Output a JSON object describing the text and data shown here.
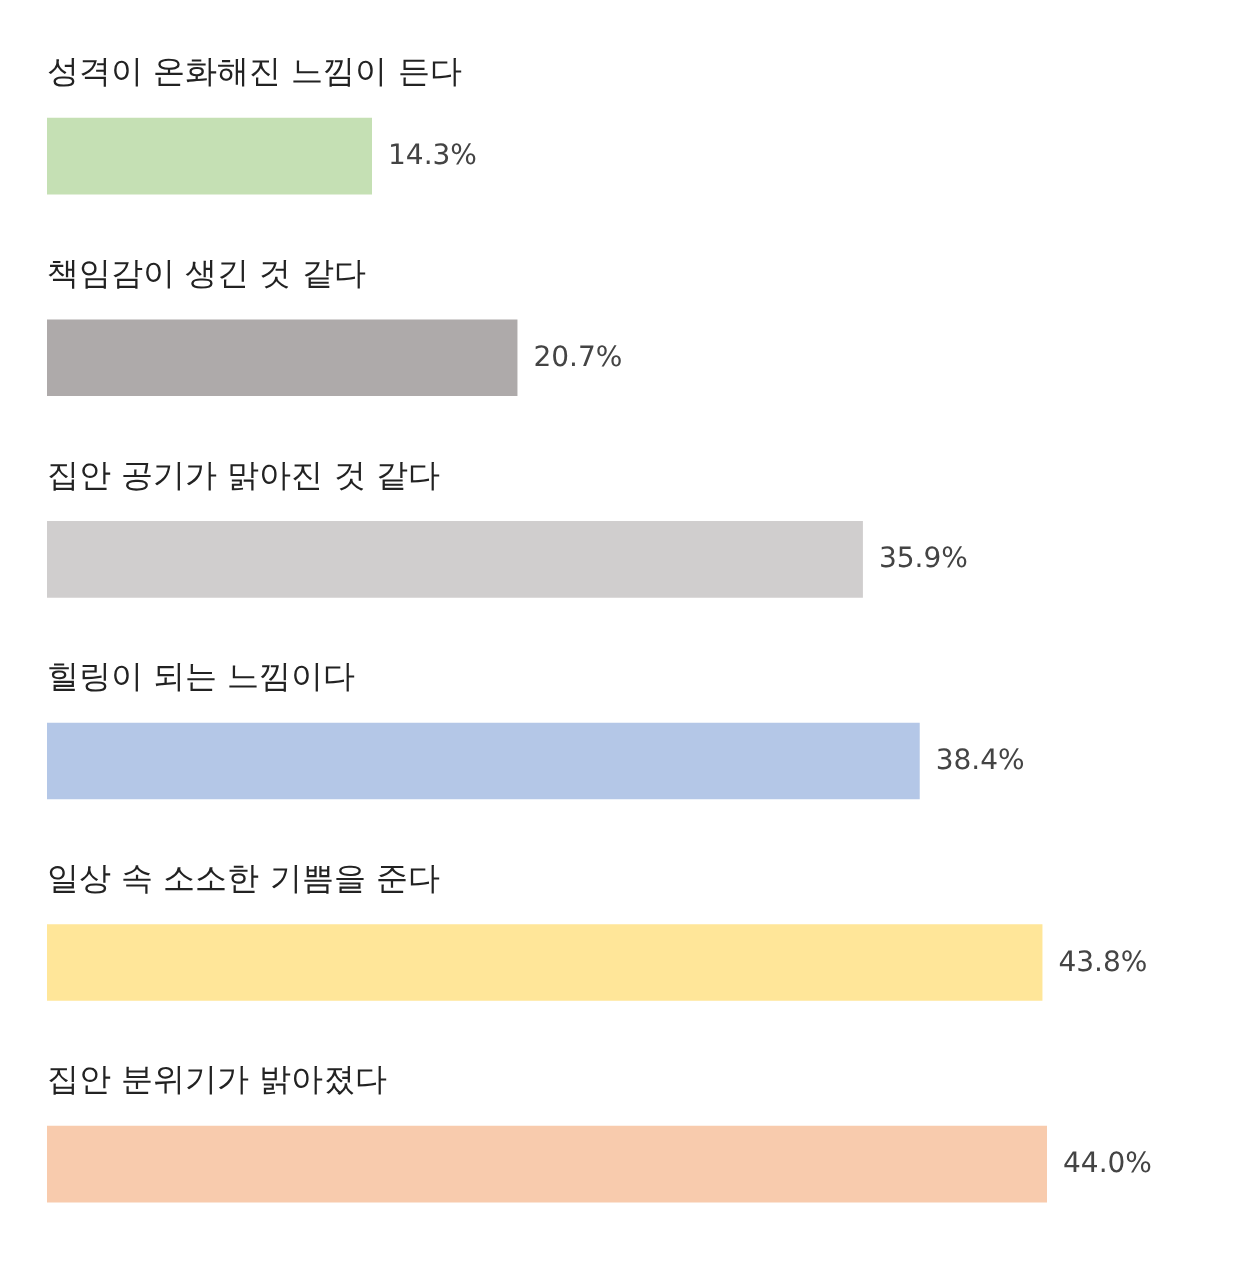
{
  "chart_data": {
    "type": "bar",
    "orientation": "horizontal",
    "categories": [
      "성격이 온화해진 느낌이 든다",
      "책임감이 생긴 것 같다",
      "집안 공기가 맑아진 것 같다",
      "힐링이 되는 느낌이다",
      "일상 속 소소한 기쁨을 준다",
      "집안 분위기가 밝아졌다"
    ],
    "values": [
      14.3,
      20.7,
      35.9,
      38.4,
      43.8,
      44.0
    ],
    "colors": [
      "#c5e0b4",
      "#aeaaaa",
      "#d0cece",
      "#b4c7e7",
      "#ffe699",
      "#f8cbad"
    ],
    "value_labels": [
      "14.3%",
      "20.7%",
      "35.9%",
      "38.4%",
      "43.8%",
      "44.0%"
    ]
  }
}
